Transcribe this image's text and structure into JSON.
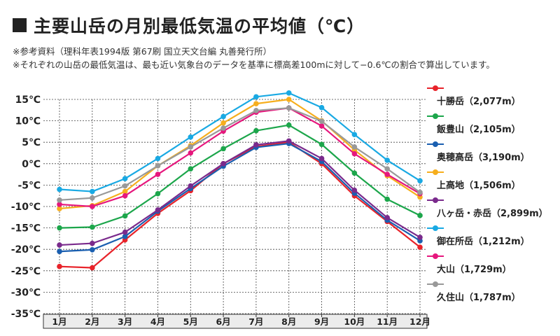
{
  "title": "主要山岳の月別最低気温の平均値（℃）",
  "notes": [
    "※参考資料（理科年表1994版 第67刷 国立天文台編 丸善発行所）",
    "※それぞれの山岳の最低気温は、最も近い気象台のデータを基準に標高差100mに対して−0.6℃の割合で算出しています。"
  ],
  "chart_data": {
    "type": "line",
    "title": "主要山岳の月別最低気温の平均値（℃）",
    "xlabel": "",
    "ylabel": "",
    "categories": [
      "1月",
      "2月",
      "3月",
      "4月",
      "5月",
      "6月",
      "7月",
      "8月",
      "9月",
      "10月",
      "11月",
      "12月"
    ],
    "ylim": [
      -35,
      15
    ],
    "yticks": [
      15,
      10,
      5,
      0,
      -5,
      -10,
      -15,
      -20,
      -25,
      -30,
      -35
    ],
    "ytick_labels": [
      "15℃",
      "10℃",
      "5℃",
      "0℃",
      "-5℃",
      "-10℃",
      "-15℃",
      "-20℃",
      "-25℃",
      "-30℃",
      "-35℃"
    ],
    "grid": true,
    "legend_position": "right",
    "series": [
      {
        "name": "十勝岳（2,077m）",
        "color": "#e8232a",
        "values": [
          -24.0,
          -24.3,
          -17.8,
          -11.6,
          -6.3,
          0.0,
          4.0,
          5.0,
          0.0,
          -7.5,
          -13.5,
          -19.5
        ]
      },
      {
        "name": "飯豊山（2,105m）",
        "color": "#1ca64b",
        "values": [
          -15.0,
          -14.8,
          -12.2,
          -7.0,
          -1.2,
          3.5,
          7.7,
          9.0,
          4.5,
          -2.2,
          -8.3,
          -12.1
        ]
      },
      {
        "name": "奥穂高岳（3,190m）",
        "color": "#1a5fb0",
        "values": [
          -20.5,
          -20.1,
          -17.0,
          -11.1,
          -5.8,
          -0.6,
          3.8,
          4.7,
          0.5,
          -6.9,
          -13.2,
          -18.0
        ]
      },
      {
        "name": "上高地（1,506m）",
        "color": "#f6ae1d",
        "values": [
          -10.5,
          -9.8,
          -6.5,
          -0.5,
          4.2,
          9.5,
          14.0,
          15.0,
          10.0,
          3.2,
          -2.8,
          -7.8
        ]
      },
      {
        "name": "八ヶ岳・赤岳（2,899m）",
        "color": "#7a2a8c",
        "values": [
          -19.0,
          -18.6,
          -16.0,
          -10.8,
          -5.2,
          0.0,
          4.4,
          5.3,
          1.2,
          -6.2,
          -12.6,
          -17.2
        ]
      },
      {
        "name": "御在所岳（1,212m）",
        "color": "#19a9e3",
        "values": [
          -6.0,
          -6.5,
          -3.5,
          1.2,
          6.2,
          11.0,
          15.6,
          16.5,
          13.1,
          6.8,
          0.8,
          -4.0
        ]
      },
      {
        "name": "大山（1,729m）",
        "color": "#e6177d",
        "values": [
          -9.5,
          -10.0,
          -7.5,
          -2.5,
          2.5,
          7.6,
          12.0,
          13.0,
          8.8,
          2.3,
          -2.5,
          -7.0
        ]
      },
      {
        "name": "久住山（1,787m）",
        "color": "#999999",
        "values": [
          -8.5,
          -8.0,
          -5.2,
          -0.5,
          3.9,
          8.3,
          12.4,
          13.0,
          9.9,
          3.9,
          -1.2,
          -6.7
        ]
      }
    ]
  }
}
